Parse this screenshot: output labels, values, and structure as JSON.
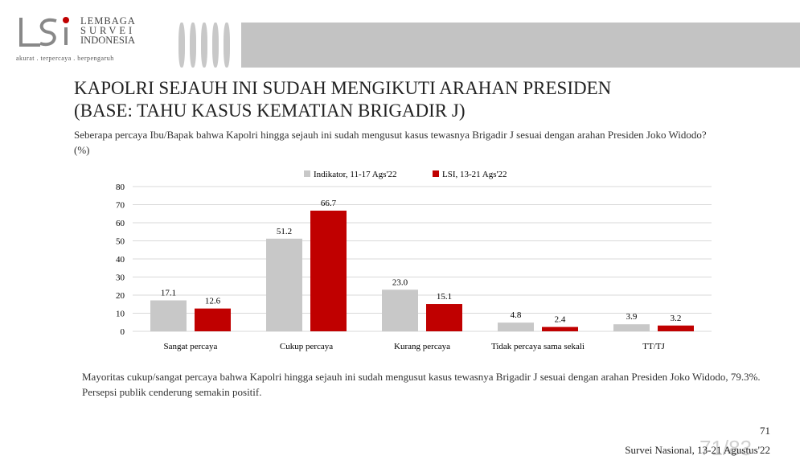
{
  "header": {
    "brand_lines": [
      "LEMBAGA",
      "SURVEI",
      "INDONESIA"
    ],
    "logo_text": "LSI",
    "tagline": "akurat . terpercaya . berpengaruh"
  },
  "title_lines": [
    "KAPOLRI SEJAUH INI SUDAH MENGIKUTI ARAHAN PRESIDEN",
    "(BASE: TAHU KASUS KEMATIAN BRIGADIR J)"
  ],
  "question": "Seberapa percaya Ibu/Bapak bahwa Kapolri hingga sejauh ini sudah mengusut kasus tewasnya Brigadir J sesuai dengan arahan Presiden Joko Widodo? (%)",
  "summary": "Mayoritas cukup/sangat percaya bahwa Kapolri hingga sejauh ini sudah mengusut kasus tewasnya Brigadir J sesuai dengan arahan Presiden Joko Widodo, 79.3%. Persepsi publik cenderung semakin positif.",
  "page_number": "71",
  "footer": "Survei Nasional, 13-21 Agustus'22",
  "watermark": "71/83",
  "chart_data": {
    "type": "bar",
    "categories": [
      "Sangat percaya",
      "Cukup percaya",
      "Kurang percaya",
      "Tidak percaya sama sekali",
      "TT/TJ"
    ],
    "series": [
      {
        "name": "Indikator, 11-17 Ags'22",
        "color": "#c8c8c8",
        "values": [
          17.1,
          51.2,
          23.0,
          4.8,
          3.9
        ]
      },
      {
        "name": "LSI, 13-21 Ags'22",
        "color": "#c00000",
        "values": [
          12.6,
          66.7,
          15.1,
          2.4,
          3.2
        ]
      }
    ],
    "yticks": [
      0,
      10,
      20,
      30,
      40,
      50,
      60,
      70,
      80
    ],
    "ylim": [
      0,
      80
    ],
    "legend": "top-center",
    "grid": true
  }
}
